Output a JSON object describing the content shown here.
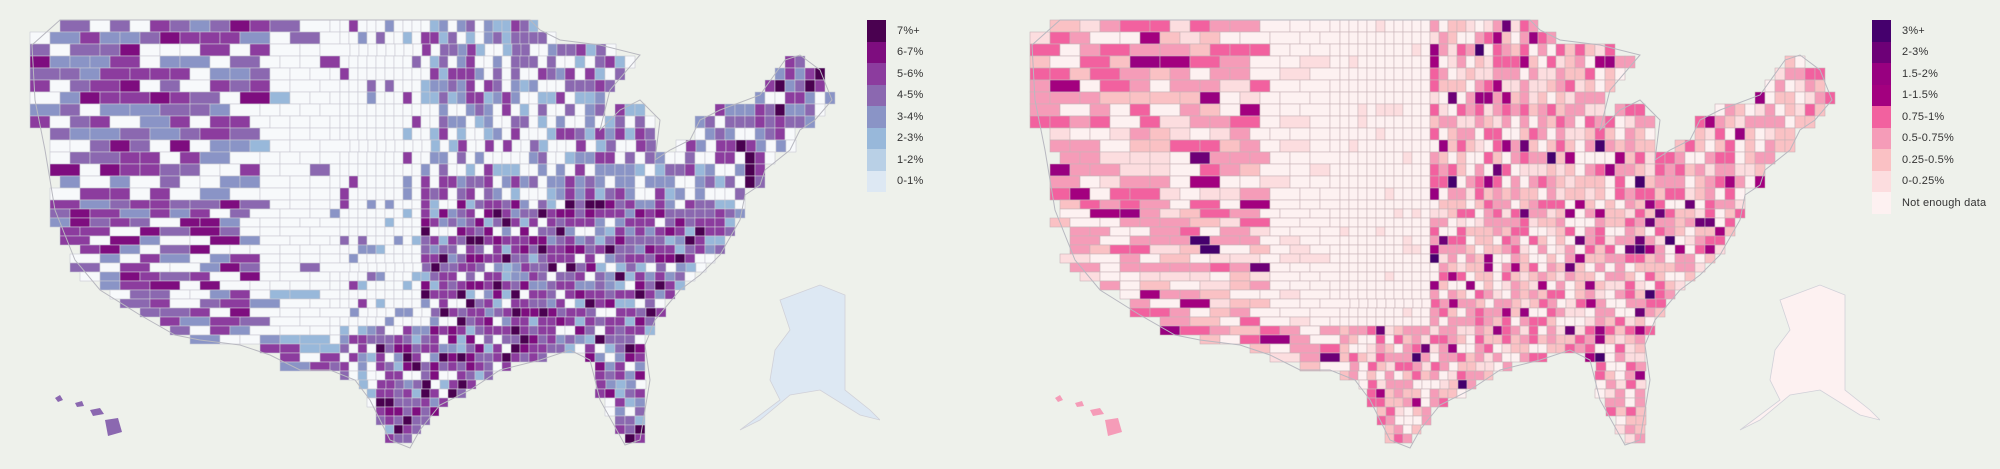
{
  "background": "#eef1eb",
  "chart_data": [
    {
      "type": "heatmap",
      "subtype": "choropleth",
      "geography": "US counties (contiguous US, Alaska, Hawaii)",
      "title": "",
      "legend_position": "top-right",
      "legend": [
        {
          "label": "7%+",
          "color": "#4a0150"
        },
        {
          "label": "6-7%",
          "color": "#7e0d7f"
        },
        {
          "label": "5-6%",
          "color": "#8c3c9e"
        },
        {
          "label": "4-5%",
          "color": "#8b68b0"
        },
        {
          "label": "3-4%",
          "color": "#8a94c6"
        },
        {
          "label": "2-3%",
          "color": "#98b8da"
        },
        {
          "label": "1-2%",
          "color": "#b9d0e6"
        },
        {
          "label": "0-1%",
          "color": "#dde8f3"
        }
      ],
      "no_data_color": "#f7f9fb",
      "pattern_notes": "Dense high values (5-7%+) across the South-Central and Southeast, Texas-Oklahoma region, Maine and parts of New England; West Coast mostly 4-6%; Great Plains largely white/no value; Alaska mostly 0-1%."
    },
    {
      "type": "heatmap",
      "subtype": "choropleth",
      "geography": "US counties (contiguous US, Alaska, Hawaii)",
      "title": "",
      "legend_position": "top-right",
      "legend": [
        {
          "label": "3%+",
          "color": "#45006d"
        },
        {
          "label": "2-3%",
          "color": "#6d0077"
        },
        {
          "label": "1.5-2%",
          "color": "#980080"
        },
        {
          "label": "1-1.5%",
          "color": "#a3007f"
        },
        {
          "label": "0.75-1%",
          "color": "#f2619f"
        },
        {
          "label": "0.5-0.75%",
          "color": "#f59cb8"
        },
        {
          "label": "0.25-0.5%",
          "color": "#fac1c4"
        },
        {
          "label": "0-0.25%",
          "color": "#fcdddf"
        },
        {
          "label": "Not enough data",
          "color": "#fdf1f1"
        }
      ],
      "pattern_notes": "Most counties 0.25-1%; scattered high values (1.5-3%+) in Georgia, Mississippi, Texas, Wyoming, Nevada, Maine, New Jersey; Great Plains and Alaska mostly not enough data."
    }
  ],
  "left_legend": {
    "items": [
      {
        "label": "7%+",
        "color": "#4a0150"
      },
      {
        "label": "6-7%",
        "color": "#7e0d7f"
      },
      {
        "label": "5-6%",
        "color": "#8c3c9e"
      },
      {
        "label": "4-5%",
        "color": "#8b68b0"
      },
      {
        "label": "3-4%",
        "color": "#8a94c6"
      },
      {
        "label": "2-3%",
        "color": "#98b8da"
      },
      {
        "label": "1-2%",
        "color": "#b9d0e6"
      },
      {
        "label": "0-1%",
        "color": "#dde8f3"
      }
    ]
  },
  "right_legend": {
    "items": [
      {
        "label": "3%+",
        "color": "#45006d"
      },
      {
        "label": "2-3%",
        "color": "#6d0077"
      },
      {
        "label": "1.5-2%",
        "color": "#980080"
      },
      {
        "label": "1-1.5%",
        "color": "#a3007f"
      },
      {
        "label": "0.75-1%",
        "color": "#f2619f"
      },
      {
        "label": "0.5-0.75%",
        "color": "#f59cb8"
      },
      {
        "label": "0.25-0.5%",
        "color": "#fac1c4"
      },
      {
        "label": "0-0.25%",
        "color": "#fcdddf"
      },
      {
        "label": "Not enough data",
        "color": "#fdf1f1"
      }
    ]
  }
}
